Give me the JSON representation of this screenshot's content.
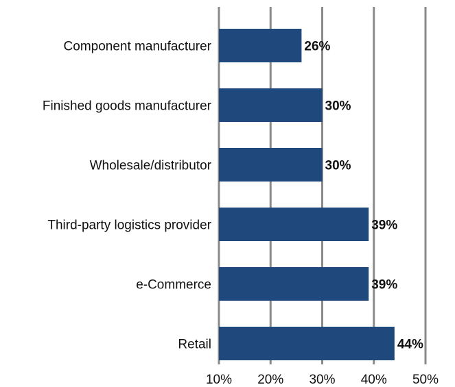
{
  "chart_data": {
    "type": "bar",
    "orientation": "horizontal",
    "title": "",
    "xlabel": "",
    "ylabel": "",
    "categories": [
      "Component manufacturer",
      "Finished goods manufacturer",
      "Wholesale/distributor",
      "Third-party logistics provider",
      "e-Commerce",
      "Retail"
    ],
    "values": [
      26,
      30,
      30,
      39,
      39,
      44
    ],
    "data_labels": [
      "26%",
      "30%",
      "30%",
      "39%",
      "39%",
      "44%"
    ],
    "xlim": [
      10,
      50
    ],
    "xticks": [
      10,
      20,
      30,
      40,
      50
    ],
    "xtick_labels": [
      "10%",
      "20%",
      "30%",
      "40%",
      "50%"
    ],
    "grid": "vertical",
    "legend": "none",
    "colors": {
      "bar": "#1f497d",
      "grid": "#8a8a8a"
    }
  }
}
